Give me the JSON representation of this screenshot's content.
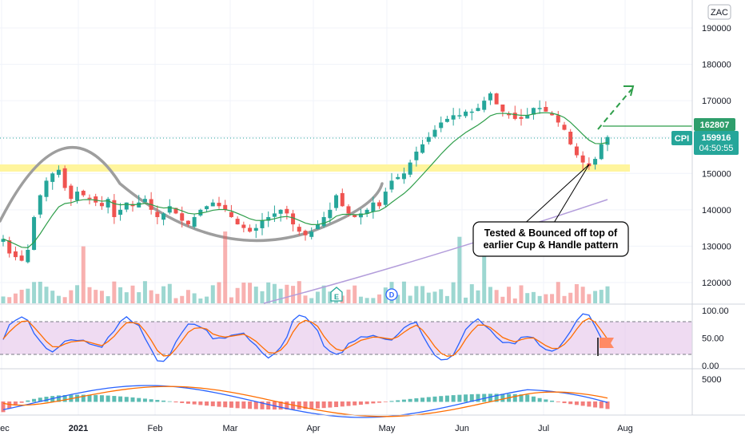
{
  "scale_badge": "ZAC",
  "chart_data": [
    {
      "type": "candlestick",
      "panel": "price",
      "yticks": [
        120000,
        130000,
        140000,
        150000,
        160000,
        170000,
        180000,
        190000
      ],
      "xtick_labels": [
        "Dec",
        "2021",
        "Feb",
        "Mar",
        "Apr",
        "May",
        "Jun",
        "Jul",
        "Aug"
      ],
      "ylim": [
        115000,
        195000
      ],
      "closes": [
        132000,
        128000,
        127000,
        126000,
        129000,
        138000,
        144000,
        148000,
        150000,
        151000,
        146000,
        143000,
        145000,
        144000,
        143000,
        142000,
        141000,
        143000,
        138000,
        140000,
        142000,
        141000,
        142000,
        143000,
        140000,
        138000,
        139000,
        141000,
        139000,
        137000,
        136000,
        138000,
        140000,
        141000,
        142000,
        141000,
        140000,
        138000,
        136000,
        135000,
        134000,
        135000,
        137000,
        138000,
        139000,
        140000,
        139000,
        136000,
        134000,
        133000,
        134000,
        136000,
        138000,
        140000,
        144000,
        141000,
        139000,
        138000,
        139000,
        140000,
        142000,
        141000,
        145000,
        148000,
        149000,
        150000,
        153000,
        156000,
        158000,
        160000,
        162000,
        164000,
        165000,
        166000,
        166000,
        167000,
        167000,
        168000,
        170000,
        172000,
        169000,
        167000,
        166000,
        165000,
        165000,
        166000,
        168000,
        168000,
        167000,
        166000,
        164000,
        162000,
        158000,
        155000,
        153000,
        152000,
        154000,
        158000,
        160000
      ],
      "current_price_label": "159916",
      "symbol_label": "CPI",
      "countdown_label": "04:50:55",
      "level_label": "162807",
      "level_value": 162807,
      "support_zone": [
        150500,
        152000
      ],
      "moving_average_1": "green",
      "moving_average_2": "purple",
      "annotation_text": [
        "Tested & Bounced off top of",
        "earlier Cup & Handle pattern"
      ],
      "event_badges": [
        "E",
        "D"
      ]
    },
    {
      "type": "line",
      "panel": "stochastic",
      "yticks": [
        0.0,
        50.0,
        100.0
      ],
      "ytick_labels": [
        "0.00",
        "50.00",
        "100.00"
      ],
      "ylim": [
        0,
        100
      ],
      "band": [
        20,
        80
      ],
      "k_color": "#2962ff",
      "d_color": "#ff6d00"
    },
    {
      "type": "bar",
      "panel": "macd",
      "yticks": [
        5000
      ],
      "ytick_labels": [
        "5000"
      ]
    }
  ],
  "colors": {
    "up": "#26a69a",
    "down": "#ef5350",
    "support": "#fff59d",
    "accent": "#2e9e6b"
  }
}
